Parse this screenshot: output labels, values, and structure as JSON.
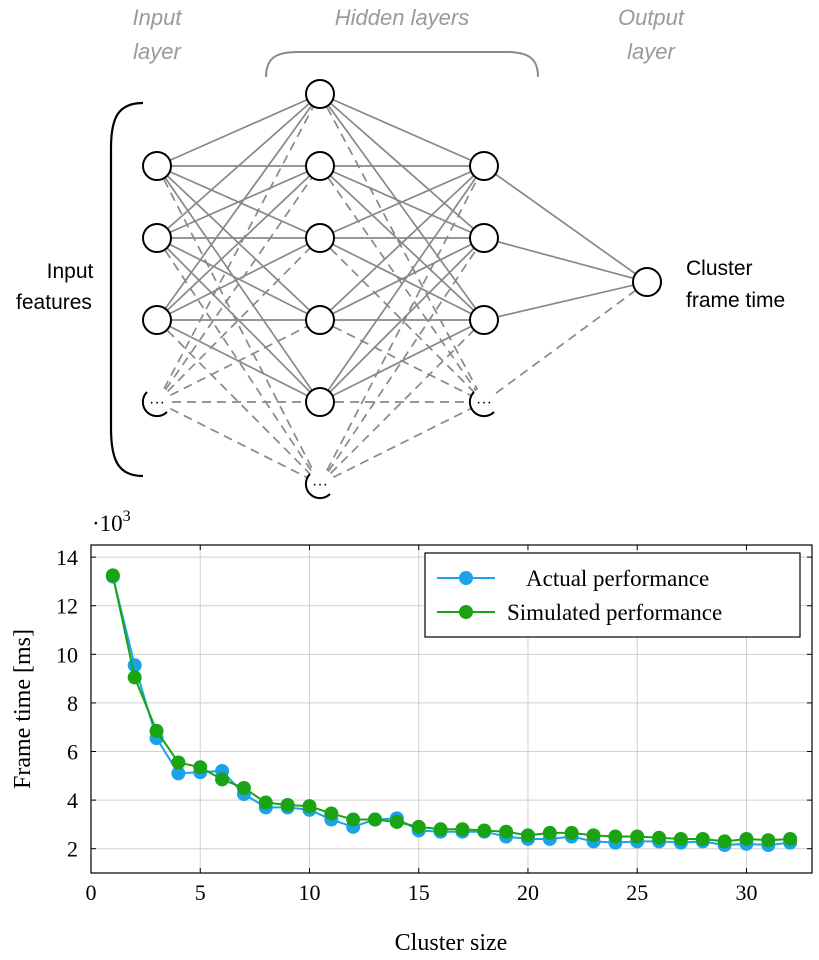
{
  "diagram": {
    "input_layer_label": [
      "Input",
      "layer"
    ],
    "hidden_layers_label": "Hidden layers",
    "output_layer_label": [
      "Output",
      "layer"
    ],
    "input_features_label": [
      "Input",
      "features"
    ],
    "output_node_label": [
      "Cluster",
      "frame time"
    ],
    "ellipsis": "···",
    "layer_sizes_visible": [
      4,
      6,
      4,
      1
    ],
    "colors": {
      "edge": "#888888",
      "node_stroke": "#000000",
      "caption": "#9a9a9a"
    }
  },
  "chart_data": {
    "type": "line",
    "xlabel": "Cluster size",
    "ylabel": "Frame time [ms]",
    "y_multiplier": "·10",
    "y_multiplier_exp": "3",
    "xlim": [
      0,
      33
    ],
    "ylim": [
      1.0,
      14.5
    ],
    "xticks": [
      0,
      5,
      10,
      15,
      20,
      25,
      30
    ],
    "yticks": [
      2,
      4,
      6,
      8,
      10,
      12,
      14
    ],
    "grid": true,
    "legend_position": "top-right",
    "x": [
      1,
      2,
      3,
      4,
      5,
      6,
      7,
      8,
      9,
      10,
      11,
      12,
      13,
      14,
      15,
      16,
      17,
      18,
      19,
      20,
      21,
      22,
      23,
      24,
      25,
      26,
      27,
      28,
      29,
      30,
      31,
      32
    ],
    "series": [
      {
        "name": "Actual performance",
        "color": "#1aa3e8",
        "values": [
          13.2,
          9.55,
          6.55,
          5.1,
          5.15,
          5.2,
          4.25,
          3.7,
          3.7,
          3.6,
          3.2,
          2.9,
          3.2,
          3.25,
          2.75,
          2.7,
          2.7,
          2.7,
          2.5,
          2.4,
          2.4,
          2.5,
          2.3,
          2.25,
          2.3,
          2.3,
          2.25,
          2.3,
          2.15,
          2.2,
          2.15,
          2.25
        ]
      },
      {
        "name": "Simulated performance",
        "color": "#1aa312",
        "values": [
          13.25,
          9.05,
          6.85,
          5.55,
          5.35,
          4.85,
          4.5,
          3.9,
          3.8,
          3.75,
          3.45,
          3.2,
          3.2,
          3.1,
          2.9,
          2.8,
          2.8,
          2.75,
          2.7,
          2.55,
          2.65,
          2.65,
          2.55,
          2.5,
          2.5,
          2.45,
          2.4,
          2.4,
          2.3,
          2.4,
          2.35,
          2.4
        ]
      }
    ]
  }
}
